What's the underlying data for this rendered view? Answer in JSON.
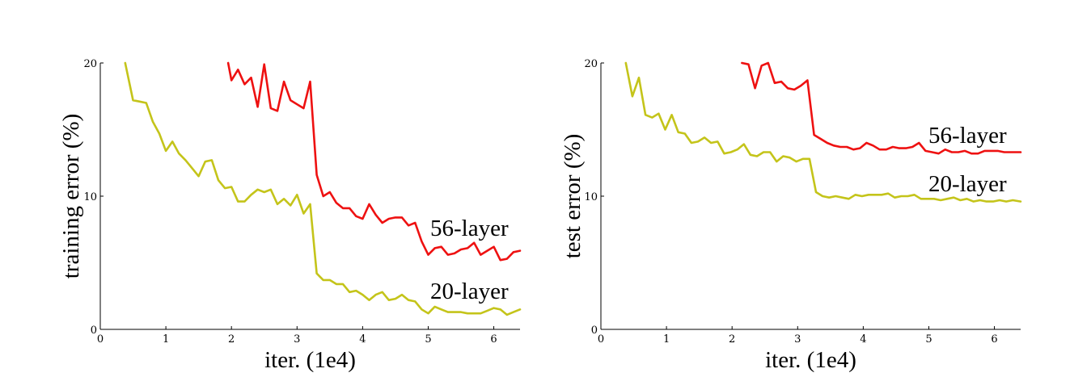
{
  "figure": {
    "background": "#ffffff",
    "colors": {
      "layer56": "#ee1111",
      "layer20": "#c4c41a",
      "axis": "#000000"
    }
  },
  "chart_data": [
    {
      "type": "line",
      "xlabel": "iter. (1e4)",
      "ylabel": "training error (%)",
      "xlim": [
        0,
        6.4
      ],
      "ylim": [
        0,
        20
      ],
      "xticks": [
        0,
        1,
        2,
        3,
        4,
        5,
        6
      ],
      "yticks": [
        0,
        10,
        20
      ],
      "grid": false,
      "series": [
        {
          "name": "56-layer",
          "color": "#ee1111",
          "x": [
            1.95,
            2.0,
            2.1,
            2.2,
            2.3,
            2.4,
            2.5,
            2.6,
            2.7,
            2.8,
            2.9,
            3.0,
            3.1,
            3.2,
            3.3,
            3.4,
            3.5,
            3.6,
            3.7,
            3.8,
            3.9,
            4.0,
            4.1,
            4.2,
            4.3,
            4.4,
            4.5,
            4.6,
            4.7,
            4.8,
            4.9,
            5.0,
            5.1,
            5.2,
            5.3,
            5.4,
            5.5,
            5.6,
            5.7,
            5.8,
            5.9,
            6.0,
            6.1,
            6.2,
            6.3,
            6.4
          ],
          "y": [
            20.0,
            18.7,
            19.5,
            18.4,
            18.9,
            16.7,
            19.9,
            16.6,
            16.4,
            18.6,
            17.2,
            16.9,
            16.6,
            18.6,
            11.6,
            10.0,
            10.3,
            9.5,
            9.1,
            9.1,
            8.5,
            8.3,
            9.4,
            8.6,
            8.0,
            8.3,
            8.4,
            8.4,
            7.8,
            8.0,
            6.6,
            5.6,
            6.1,
            6.2,
            5.6,
            5.7,
            6.0,
            6.1,
            6.5,
            5.6,
            5.9,
            6.2,
            5.2,
            5.3,
            5.8,
            5.9
          ]
        },
        {
          "name": "20-layer",
          "color": "#c4c41a",
          "x": [
            0.38,
            0.5,
            0.6,
            0.7,
            0.8,
            0.9,
            1.0,
            1.1,
            1.2,
            1.3,
            1.4,
            1.5,
            1.6,
            1.7,
            1.8,
            1.9,
            2.0,
            2.1,
            2.2,
            2.3,
            2.4,
            2.5,
            2.6,
            2.7,
            2.8,
            2.9,
            3.0,
            3.1,
            3.2,
            3.3,
            3.4,
            3.5,
            3.6,
            3.7,
            3.8,
            3.9,
            4.0,
            4.1,
            4.2,
            4.3,
            4.4,
            4.5,
            4.6,
            4.7,
            4.8,
            4.9,
            5.0,
            5.1,
            5.2,
            5.3,
            5.4,
            5.5,
            5.6,
            5.7,
            5.8,
            5.9,
            6.0,
            6.1,
            6.2,
            6.3,
            6.4
          ],
          "y": [
            20.0,
            17.2,
            17.1,
            17.0,
            15.6,
            14.7,
            13.4,
            14.1,
            13.2,
            12.7,
            12.1,
            11.5,
            12.6,
            12.7,
            11.2,
            10.6,
            10.7,
            9.6,
            9.6,
            10.1,
            10.5,
            10.3,
            10.5,
            9.4,
            9.8,
            9.3,
            10.1,
            8.7,
            9.4,
            4.2,
            3.7,
            3.7,
            3.4,
            3.4,
            2.8,
            2.9,
            2.6,
            2.2,
            2.6,
            2.8,
            2.2,
            2.3,
            2.6,
            2.2,
            2.1,
            1.5,
            1.2,
            1.7,
            1.5,
            1.3,
            1.3,
            1.3,
            1.2,
            1.2,
            1.2,
            1.4,
            1.6,
            1.5,
            1.1,
            1.3,
            1.5
          ]
        }
      ]
    },
    {
      "type": "line",
      "xlabel": "iter. (1e4)",
      "ylabel": "test error (%)",
      "xlim": [
        0,
        6.4
      ],
      "ylim": [
        0,
        20
      ],
      "xticks": [
        0,
        1,
        2,
        3,
        4,
        5,
        6
      ],
      "yticks": [
        0,
        10,
        20
      ],
      "grid": false,
      "series": [
        {
          "name": "56-layer",
          "color": "#ee1111",
          "x": [
            2.15,
            2.25,
            2.35,
            2.45,
            2.55,
            2.65,
            2.75,
            2.85,
            2.95,
            3.05,
            3.15,
            3.25,
            3.35,
            3.45,
            3.55,
            3.65,
            3.75,
            3.85,
            3.95,
            4.05,
            4.15,
            4.25,
            4.35,
            4.45,
            4.55,
            4.65,
            4.75,
            4.85,
            4.95,
            5.05,
            5.15,
            5.25,
            5.35,
            5.45,
            5.55,
            5.65,
            5.75,
            5.85,
            5.95,
            6.05,
            6.15,
            6.25,
            6.35,
            6.4
          ],
          "y": [
            20.0,
            19.9,
            18.1,
            19.8,
            20.0,
            18.5,
            18.6,
            18.1,
            18.0,
            18.3,
            18.7,
            14.6,
            14.3,
            14.0,
            13.8,
            13.7,
            13.7,
            13.5,
            13.6,
            14.0,
            13.8,
            13.5,
            13.5,
            13.7,
            13.6,
            13.6,
            13.7,
            14.0,
            13.4,
            13.3,
            13.2,
            13.5,
            13.3,
            13.3,
            13.4,
            13.2,
            13.2,
            13.4,
            13.4,
            13.4,
            13.3,
            13.3,
            13.3,
            13.3
          ]
        },
        {
          "name": "20-layer",
          "color": "#c4c41a",
          "x": [
            0.38,
            0.48,
            0.58,
            0.68,
            0.78,
            0.88,
            0.98,
            1.08,
            1.18,
            1.28,
            1.38,
            1.48,
            1.58,
            1.68,
            1.78,
            1.88,
            1.98,
            2.08,
            2.18,
            2.28,
            2.38,
            2.48,
            2.58,
            2.68,
            2.78,
            2.88,
            2.98,
            3.08,
            3.18,
            3.28,
            3.38,
            3.48,
            3.58,
            3.68,
            3.78,
            3.88,
            3.98,
            4.08,
            4.18,
            4.28,
            4.38,
            4.48,
            4.58,
            4.68,
            4.78,
            4.88,
            4.98,
            5.08,
            5.18,
            5.28,
            5.38,
            5.48,
            5.58,
            5.68,
            5.78,
            5.88,
            5.98,
            6.08,
            6.18,
            6.28,
            6.4
          ],
          "y": [
            20.0,
            17.5,
            18.9,
            16.1,
            15.9,
            16.2,
            15.0,
            16.1,
            14.8,
            14.7,
            14.0,
            14.1,
            14.4,
            14.0,
            14.1,
            13.2,
            13.3,
            13.5,
            13.9,
            13.1,
            13.0,
            13.3,
            13.3,
            12.6,
            13.0,
            12.9,
            12.6,
            12.8,
            12.8,
            10.3,
            10.0,
            9.9,
            10.0,
            9.9,
            9.8,
            10.1,
            10.0,
            10.1,
            10.1,
            10.1,
            10.2,
            9.9,
            10.0,
            10.0,
            10.1,
            9.8,
            9.8,
            9.8,
            9.7,
            9.8,
            9.9,
            9.7,
            9.8,
            9.6,
            9.7,
            9.6,
            9.6,
            9.7,
            9.6,
            9.7,
            9.6
          ]
        }
      ]
    }
  ]
}
